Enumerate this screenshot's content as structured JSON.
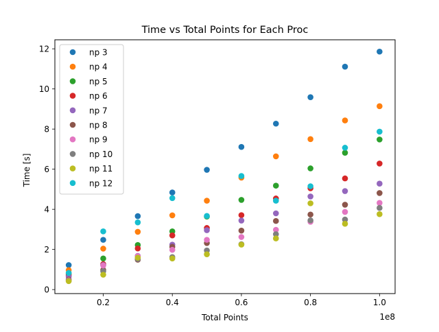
{
  "chart_data": {
    "type": "scatter",
    "title": "Time vs Total Points for Each Proc",
    "xlabel": "Total Points",
    "ylabel": "Time [s]",
    "x_offset_label": "1e8",
    "xlim": [
      0.06,
      1.045
    ],
    "ylim": [
      -0.2,
      12.45
    ],
    "x_ticks": [
      0.2,
      0.4,
      0.6,
      0.8,
      1.0
    ],
    "x_tick_labels": [
      "0.2",
      "0.4",
      "0.6",
      "0.8",
      "1.0"
    ],
    "y_ticks": [
      0,
      2,
      4,
      6,
      8,
      10,
      12
    ],
    "y_tick_labels": [
      "0",
      "2",
      "4",
      "6",
      "8",
      "10",
      "12"
    ],
    "grid": false,
    "legend_position": "top-left",
    "x": [
      0.1,
      0.2,
      0.3,
      0.4,
      0.5,
      0.6,
      0.7,
      0.8,
      0.9,
      1.0
    ],
    "series": [
      {
        "name": "np 3",
        "color": "#1f77b4",
        "values": [
          1.22,
          2.48,
          3.66,
          4.84,
          5.97,
          7.11,
          8.27,
          9.59,
          11.11,
          11.86
        ]
      },
      {
        "name": "np 4",
        "color": "#ff7f0e",
        "values": [
          0.97,
          2.04,
          2.88,
          3.7,
          4.43,
          5.58,
          6.64,
          7.5,
          8.43,
          9.14
        ]
      },
      {
        "name": "np 5",
        "color": "#2ca02c",
        "values": [
          0.79,
          1.55,
          2.22,
          2.9,
          3.64,
          4.47,
          5.18,
          6.04,
          6.82,
          7.48
        ]
      },
      {
        "name": "np 6",
        "color": "#d62728",
        "values": [
          0.72,
          1.27,
          2.05,
          2.7,
          3.07,
          3.71,
          4.54,
          5.05,
          5.54,
          6.28
        ]
      },
      {
        "name": "np 7",
        "color": "#9467bd",
        "values": [
          0.64,
          1.22,
          1.68,
          2.24,
          2.96,
          3.44,
          3.8,
          4.64,
          4.91,
          5.28
        ]
      },
      {
        "name": "np 8",
        "color": "#8c564b",
        "values": [
          0.5,
          0.98,
          1.49,
          2.13,
          2.32,
          2.94,
          3.42,
          3.74,
          4.23,
          4.81
        ]
      },
      {
        "name": "np 9",
        "color": "#e377c2",
        "values": [
          0.46,
          1.2,
          1.66,
          1.98,
          2.48,
          2.62,
          2.98,
          3.38,
          3.87,
          4.32
        ]
      },
      {
        "name": "np 10",
        "color": "#7f7f7f",
        "values": [
          0.44,
          0.91,
          1.53,
          1.62,
          1.95,
          2.26,
          2.76,
          3.45,
          3.49,
          4.07
        ]
      },
      {
        "name": "np 11",
        "color": "#bcbd22",
        "values": [
          0.42,
          0.74,
          1.59,
          1.55,
          1.76,
          2.24,
          2.55,
          4.3,
          3.28,
          3.76
        ]
      },
      {
        "name": "np 12",
        "color": "#17becf",
        "values": [
          0.83,
          2.9,
          3.35,
          4.56,
          3.67,
          5.66,
          4.43,
          5.15,
          7.07,
          7.87
        ]
      }
    ]
  }
}
